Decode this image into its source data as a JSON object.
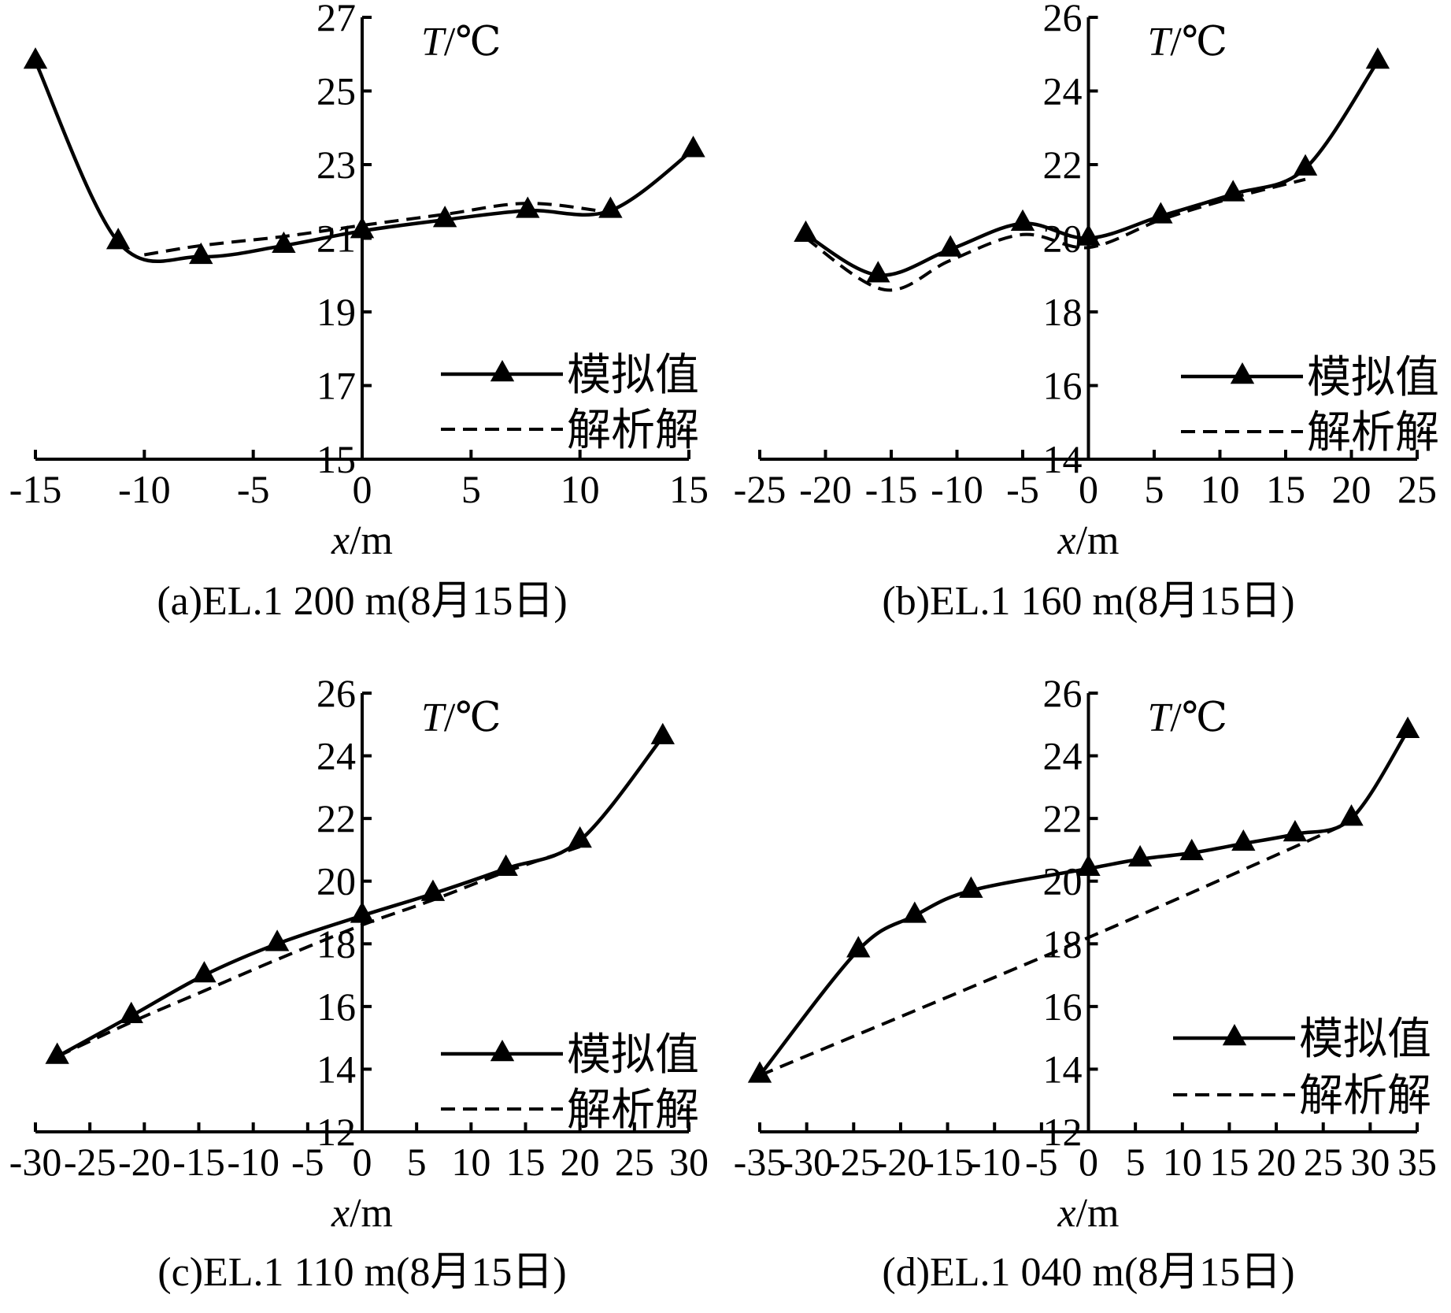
{
  "chart_data": [
    {
      "type": "line",
      "caption": "(a)EL.1 200 m(8月15日)",
      "xlabel": "x/m",
      "ylabel": "T/℃",
      "xlim": [
        -15,
        15
      ],
      "ylim": [
        15,
        27
      ],
      "xticks": [
        -15,
        -10,
        -5,
        0,
        5,
        10,
        15
      ],
      "yticks": [
        15,
        17,
        19,
        21,
        23,
        25,
        27
      ],
      "series": [
        {
          "name": "模拟值",
          "style": "solid-triangle",
          "x": [
            -15,
            -11.2,
            -7.4,
            -3.6,
            0,
            3.8,
            7.6,
            11.4,
            15.2
          ],
          "y": [
            25.8,
            20.9,
            20.5,
            20.8,
            21.2,
            21.5,
            21.75,
            21.75,
            23.4
          ]
        },
        {
          "name": "解析解",
          "style": "dashed",
          "x": [
            -10,
            -7.4,
            -3.6,
            0,
            3.8,
            7.6,
            11.4
          ],
          "y": [
            20.55,
            20.8,
            21.05,
            21.35,
            21.65,
            21.95,
            21.7
          ]
        }
      ]
    },
    {
      "type": "line",
      "caption": "(b)EL.1 160 m(8月15日)",
      "xlabel": "x/m",
      "ylabel": "T/℃",
      "xlim": [
        -25,
        25
      ],
      "ylim": [
        14,
        26
      ],
      "xticks": [
        -25,
        -20,
        -15,
        -10,
        -5,
        0,
        5,
        10,
        15,
        20,
        25
      ],
      "yticks": [
        14,
        16,
        18,
        20,
        22,
        24,
        26
      ],
      "series": [
        {
          "name": "模拟值",
          "style": "solid-triangle",
          "x": [
            -21.5,
            -16,
            -10.5,
            -5,
            0,
            5.5,
            11,
            16.5,
            22
          ],
          "y": [
            20.1,
            19.0,
            19.7,
            20.4,
            20.0,
            20.6,
            21.2,
            21.9,
            24.8
          ]
        },
        {
          "name": "解析解",
          "style": "dashed",
          "x": [
            -21.5,
            -15.5,
            -10.5,
            -5,
            0,
            5.5,
            11,
            16.5
          ],
          "y": [
            20.0,
            18.6,
            19.4,
            20.1,
            19.75,
            20.5,
            21.1,
            21.6
          ]
        }
      ]
    },
    {
      "type": "line",
      "caption": "(c)EL.1 110 m(8月15日)",
      "xlabel": "x/m",
      "ylabel": "T/℃",
      "xlim": [
        -30,
        30
      ],
      "ylim": [
        12,
        26
      ],
      "xticks": [
        -30,
        -25,
        -20,
        -15,
        -10,
        -5,
        0,
        5,
        10,
        15,
        20,
        25,
        30
      ],
      "yticks": [
        12,
        14,
        16,
        18,
        20,
        22,
        24,
        26
      ],
      "series": [
        {
          "name": "模拟值",
          "style": "solid-triangle",
          "x": [
            -28,
            -21.2,
            -14.5,
            -7.8,
            0,
            6.5,
            13.2,
            20,
            27.6
          ],
          "y": [
            14.4,
            15.7,
            17.0,
            18.0,
            18.9,
            19.6,
            20.4,
            21.3,
            24.6
          ]
        },
        {
          "name": "解析解",
          "style": "dashed",
          "x": [
            -28,
            -21.2,
            -14.5,
            -7.8,
            0,
            6.5,
            13.2,
            20
          ],
          "y": [
            14.4,
            15.5,
            16.5,
            17.5,
            18.6,
            19.4,
            20.3,
            21.1
          ]
        }
      ]
    },
    {
      "type": "line",
      "caption": "(d)EL.1 040 m(8月15日)",
      "xlabel": "x/m",
      "ylabel": "T/℃",
      "xlim": [
        -35,
        35
      ],
      "ylim": [
        12,
        26
      ],
      "xticks": [
        -35,
        -30,
        -25,
        -20,
        -15,
        -10,
        -5,
        0,
        5,
        10,
        15,
        20,
        25,
        30,
        35
      ],
      "yticks": [
        12,
        14,
        16,
        18,
        20,
        22,
        24,
        26
      ],
      "series": [
        {
          "name": "模拟值",
          "style": "solid-triangle",
          "x": [
            -35,
            -24.5,
            -18.5,
            -12.5,
            0,
            5.5,
            11,
            16.5,
            22,
            28,
            34
          ],
          "y": [
            13.8,
            17.8,
            18.9,
            19.7,
            20.4,
            20.7,
            20.9,
            21.2,
            21.5,
            22.0,
            24.8
          ]
        },
        {
          "name": "解析解",
          "style": "dashed",
          "x": [
            -35,
            0,
            28
          ],
          "y": [
            13.8,
            18.2,
            21.9
          ]
        }
      ]
    }
  ],
  "legend": {
    "sim_label": "模拟值",
    "ana_label": "解析解"
  },
  "axis_text": {
    "y_var": "T",
    "y_unit": "/℃",
    "x_var": "x",
    "x_unit": "/m"
  }
}
